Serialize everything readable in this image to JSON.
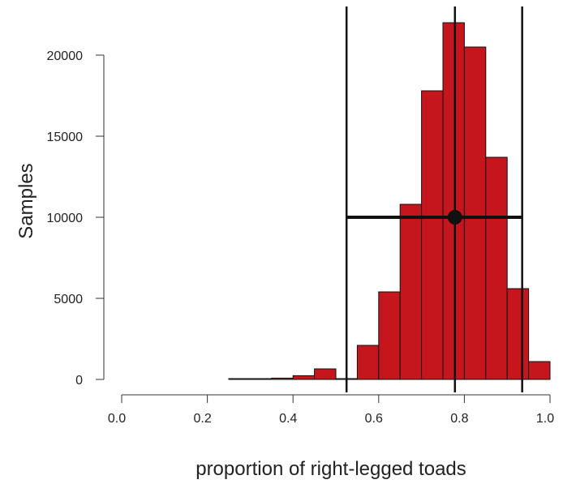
{
  "chart_data": {
    "type": "bar",
    "title": "",
    "xlabel": "proportion of right-legged toads",
    "ylabel": "Samples",
    "xlim": [
      0.0,
      1.0
    ],
    "ylim": [
      0,
      22000
    ],
    "x_ticks": [
      "0.0",
      "0.2",
      "0.4",
      "0.6",
      "0.8",
      "1.0"
    ],
    "y_ticks": [
      "0",
      "5000",
      "10000",
      "15000",
      "20000"
    ],
    "bin_width": 0.05,
    "bin_starts": [
      0.25,
      0.3,
      0.35,
      0.4,
      0.45,
      0.5,
      0.55,
      0.6,
      0.65,
      0.7,
      0.75,
      0.8,
      0.85,
      0.9,
      0.95
    ],
    "values": [
      10,
      30,
      80,
      230,
      650,
      10,
      2100,
      5400,
      10800,
      17800,
      22000,
      20500,
      13700,
      5600,
      1100
    ],
    "bar_color": "#c4161c",
    "interval": {
      "lower": 0.525,
      "upper": 0.935,
      "point": 0.778,
      "y": 10000
    },
    "grid": false,
    "legend": "none"
  }
}
